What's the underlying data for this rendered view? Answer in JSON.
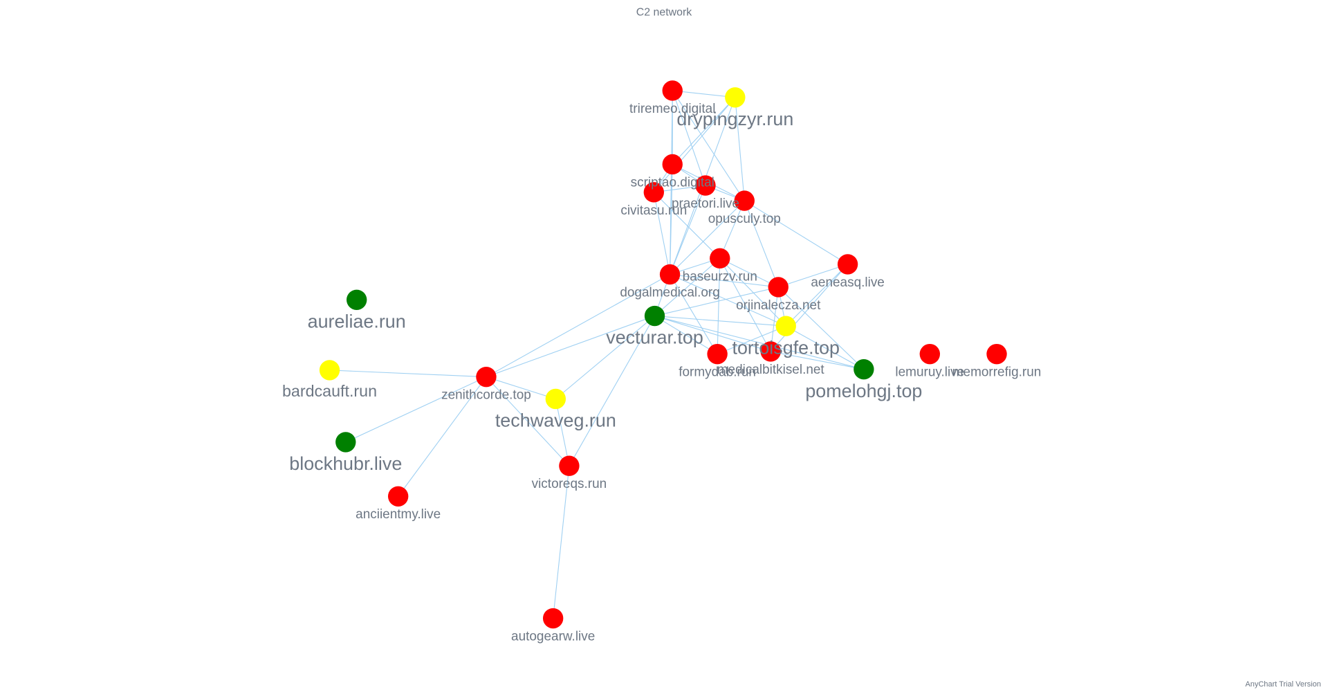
{
  "title": "C2 network",
  "watermark": "AnyChart Trial Version",
  "nodes": [
    {
      "label": "triremeo.digital",
      "color": "#ff0000"
    },
    {
      "label": "drypingzyr.run",
      "color": "#ffff00"
    },
    {
      "label": "scriptao.digital",
      "color": "#ff0000"
    },
    {
      "label": "praetori.live",
      "color": "#ff0000"
    },
    {
      "label": "civitasu.run",
      "color": "#ff0000"
    },
    {
      "label": "opusculy.top",
      "color": "#ff0000"
    },
    {
      "label": "baseurzv.run",
      "color": "#ff0000"
    },
    {
      "label": "aeneasq.live",
      "color": "#ff0000"
    },
    {
      "label": "dogalmedical.org",
      "color": "#ff0000"
    },
    {
      "label": "orjinalecza.net",
      "color": "#ff0000"
    },
    {
      "label": "vecturar.top",
      "color": "#008000"
    },
    {
      "label": "tortoisgfe.top",
      "color": "#ffff00"
    },
    {
      "label": "formydab.run",
      "color": "#ff0000"
    },
    {
      "label": "medicalbitkisel.net",
      "color": "#ff0000"
    },
    {
      "label": "pomelohgj.top",
      "color": "#008000"
    },
    {
      "label": "lemuruy.live",
      "color": "#ff0000"
    },
    {
      "label": "memorrefig.run",
      "color": "#ff0000"
    },
    {
      "label": "aureliae.run",
      "color": "#008000"
    },
    {
      "label": "bardcauft.run",
      "color": "#ffff00"
    },
    {
      "label": "zenithcorde.top",
      "color": "#ff0000"
    },
    {
      "label": "techwaveg.run",
      "color": "#ffff00"
    },
    {
      "label": "blockhubr.live",
      "color": "#008000"
    },
    {
      "label": "victoreqs.run",
      "color": "#ff0000"
    },
    {
      "label": "anciientmy.live",
      "color": "#ff0000"
    },
    {
      "label": "autogearw.live",
      "color": "#ff0000"
    }
  ],
  "edges": [
    [
      19,
      10
    ],
    [
      19,
      8
    ],
    [
      19,
      18
    ],
    [
      19,
      21
    ],
    [
      19,
      23
    ],
    [
      19,
      20
    ],
    [
      19,
      22
    ],
    [
      20,
      10
    ],
    [
      20,
      22
    ],
    [
      22,
      10
    ],
    [
      22,
      24
    ],
    [
      10,
      8
    ],
    [
      10,
      6
    ],
    [
      10,
      9
    ],
    [
      10,
      11
    ],
    [
      10,
      13
    ],
    [
      10,
      12
    ],
    [
      10,
      14
    ],
    [
      8,
      0
    ],
    [
      8,
      1
    ],
    [
      8,
      2
    ],
    [
      8,
      3
    ],
    [
      8,
      4
    ],
    [
      8,
      5
    ],
    [
      8,
      6
    ],
    [
      8,
      9
    ],
    [
      8,
      11
    ],
    [
      8,
      12
    ],
    [
      0,
      1
    ],
    [
      0,
      2
    ],
    [
      0,
      3
    ],
    [
      0,
      5
    ],
    [
      1,
      4
    ],
    [
      1,
      5
    ],
    [
      1,
      2
    ],
    [
      2,
      3
    ],
    [
      2,
      4
    ],
    [
      2,
      5
    ],
    [
      3,
      4
    ],
    [
      3,
      5
    ],
    [
      4,
      6
    ],
    [
      5,
      6
    ],
    [
      5,
      9
    ],
    [
      5,
      7
    ],
    [
      6,
      9
    ],
    [
      6,
      12
    ],
    [
      6,
      13
    ],
    [
      6,
      11
    ],
    [
      9,
      7
    ],
    [
      9,
      11
    ],
    [
      9,
      13
    ],
    [
      9,
      14
    ],
    [
      11,
      7
    ],
    [
      11,
      14
    ],
    [
      11,
      12
    ],
    [
      13,
      14
    ],
    [
      7,
      13
    ]
  ]
}
